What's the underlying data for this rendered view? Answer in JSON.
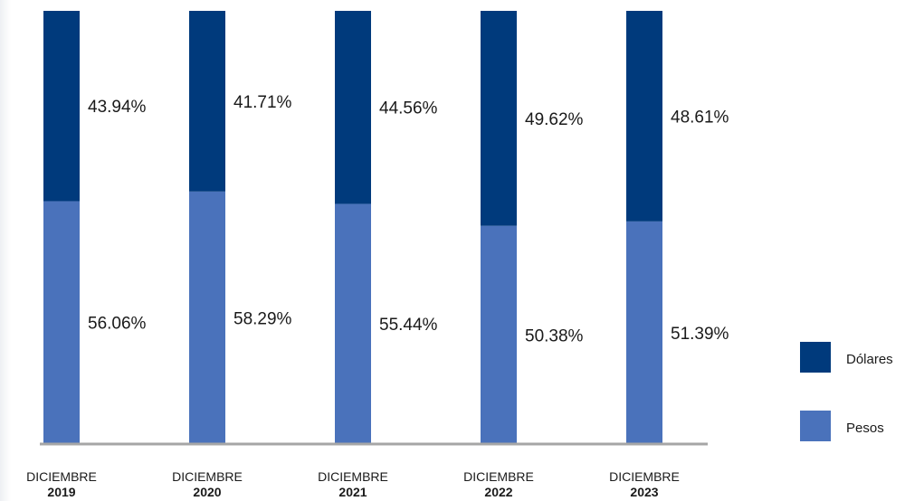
{
  "chart_data": {
    "type": "bar",
    "stacked": true,
    "categories": [
      [
        "DICIEMBRE",
        "2019"
      ],
      [
        "DICIEMBRE",
        "2020"
      ],
      [
        "DICIEMBRE",
        "2021"
      ],
      [
        "DICIEMBRE",
        "2022"
      ],
      [
        "DICIEMBRE",
        "2023"
      ]
    ],
    "series": [
      {
        "name": "Pesos",
        "color": "#4a72bb",
        "values": [
          56.06,
          58.29,
          55.44,
          50.38,
          51.39
        ]
      },
      {
        "name": "Dólares",
        "color": "#003a7c",
        "values": [
          43.94,
          41.71,
          44.56,
          49.62,
          48.61
        ]
      }
    ],
    "data_labels": {
      "Pesos": [
        "56.06%",
        "58.29%",
        "55.44%",
        "50.38%",
        "51.39%"
      ],
      "Dólares": [
        "43.94%",
        "41.71%",
        "44.56%",
        "49.62%",
        "48.61%"
      ]
    },
    "ylim": [
      0,
      100
    ],
    "unit": "%",
    "grid": false,
    "legend": {
      "position": "right",
      "entries": [
        "Dólares",
        "Pesos"
      ]
    },
    "axis_color": "#a6a6a6",
    "title": "",
    "xlabel": "",
    "ylabel": ""
  }
}
